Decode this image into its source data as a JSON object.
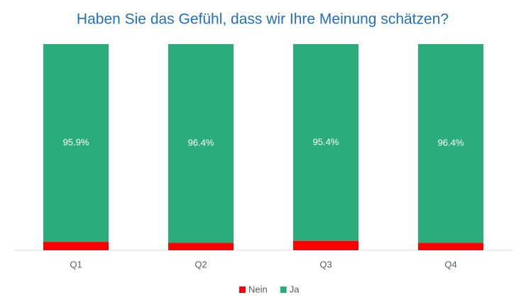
{
  "chart_data": {
    "type": "stacked_bar",
    "title": "Haben Sie das Gefühl, dass wir Ihre Meinung schätzen?",
    "categories": [
      "Q1",
      "Q2",
      "Q3",
      "Q4"
    ],
    "series": [
      {
        "name": "Nein",
        "color": "#ff0000",
        "values": [
          4.1,
          3.6,
          4.6,
          3.6
        ]
      },
      {
        "name": "Ja",
        "color": "#2aad78",
        "values": [
          95.9,
          96.4,
          95.4,
          96.4
        ],
        "value_labels": [
          "95.9%",
          "96.4%",
          "95.4%",
          "96.4%"
        ]
      }
    ],
    "ylim": [
      0,
      100
    ]
  }
}
